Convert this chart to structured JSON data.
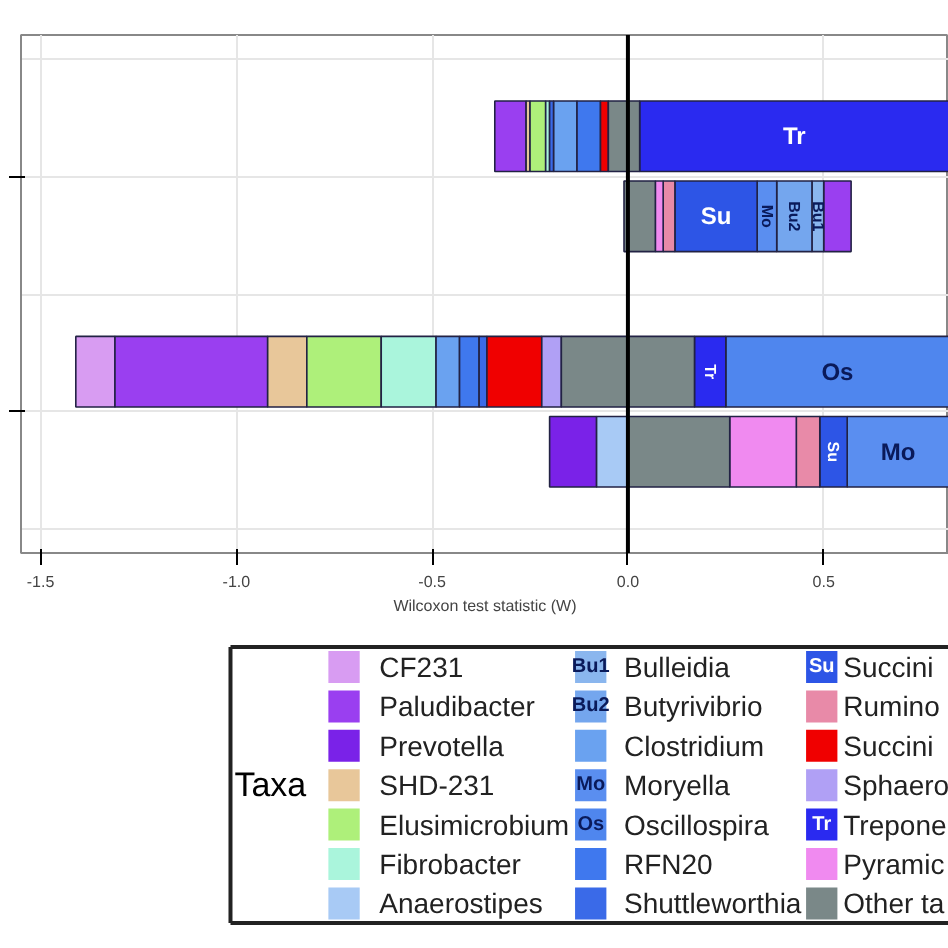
{
  "chart_data": {
    "type": "bar",
    "orientation": "horizontal",
    "xlabel": "Wilcoxon test statistic (W)",
    "legend_title": "Taxa",
    "legend": "bottom",
    "grid": true,
    "tick_labels": "x",
    "categories": [
      null,
      null,
      null,
      null
    ],
    "xlim": [
      -1.55,
      0.82
    ],
    "xticks": [
      {
        "value": -1.5,
        "label": "-1.5"
      },
      {
        "value": -1.0,
        "label": "-1.0"
      },
      {
        "value": -0.5,
        "label": "-0.5"
      },
      {
        "value": 0,
        "label": "0.0"
      },
      {
        "value": 0.5,
        "label": "0.5"
      }
    ],
    "ref_lines": [
      {
        "axis": "x",
        "value": 0,
        "color": "#000000"
      }
    ],
    "series": [
      {
        "name": "CF231",
        "color": "#d89cf2",
        "base": [
          null,
          null,
          -1.41,
          null
        ],
        "values": [
          null,
          null,
          0.1,
          null
        ]
      },
      {
        "name": "Paludibacter",
        "color": "#9a3ff0",
        "base": [
          -0.34,
          0.5,
          -1.31,
          null
        ],
        "values": [
          0.08,
          0.07,
          0.39,
          null
        ]
      },
      {
        "name": "Prevotella",
        "color": "#7a22e8",
        "base": [
          null,
          null,
          null,
          -0.2
        ],
        "values": [
          null,
          null,
          null,
          0.12
        ]
      },
      {
        "name": "SHD-231",
        "color": "#e8c79a",
        "base": [
          -0.26,
          null,
          -0.92,
          null
        ],
        "values": [
          0.01,
          null,
          0.1,
          null
        ]
      },
      {
        "name": "Elusimicrobium",
        "color": "#aef07a",
        "base": [
          -0.25,
          null,
          -0.82,
          null
        ],
        "values": [
          0.04,
          null,
          0.19,
          null
        ]
      },
      {
        "name": "Fibrobacter",
        "color": "#aaf5dc",
        "base": [
          -0.21,
          null,
          -0.63,
          null
        ],
        "values": [
          0.01,
          null,
          0.14,
          null
        ]
      },
      {
        "name": "Anaerostipes",
        "color": "#a8caf5",
        "base": [
          null,
          null,
          null,
          -0.08
        ],
        "values": [
          null,
          null,
          null,
          0.08
        ]
      },
      {
        "name": "Bulleidia",
        "color": "#8ab6ee",
        "base": [
          null,
          0.47,
          null,
          null
        ],
        "values": [
          null,
          0.03,
          null,
          null
        ],
        "value_labels": [
          null,
          "Bu1",
          null,
          null
        ]
      },
      {
        "name": "Butyrivibrio",
        "color": "#74a6ee",
        "base": [
          null,
          0.38,
          null,
          null
        ],
        "values": [
          null,
          0.09,
          null,
          null
        ],
        "value_labels": [
          null,
          "Bu2",
          null,
          null
        ]
      },
      {
        "name": "Clostridium",
        "color": "#6aa2f0",
        "base": [
          -0.19,
          null,
          -0.49,
          null
        ],
        "values": [
          0.06,
          null,
          0.06,
          null
        ]
      },
      {
        "name": "Moryella",
        "color": "#5a8ef0",
        "base": [
          null,
          0.33,
          null,
          0.56
        ],
        "values": [
          null,
          0.05,
          null,
          0.26
        ],
        "value_labels": [
          null,
          "Mo",
          null,
          "Mo"
        ]
      },
      {
        "name": "Oscillospira",
        "color": "#4f86ee",
        "base": [
          null,
          null,
          0.25,
          null
        ],
        "values": [
          null,
          null,
          0.57,
          null
        ],
        "value_labels": [
          null,
          null,
          "Os",
          null
        ]
      },
      {
        "name": "RFN20",
        "color": "#3f78ee",
        "base": [
          -0.13,
          null,
          -0.43,
          null
        ],
        "values": [
          0.06,
          null,
          0.05,
          null
        ]
      },
      {
        "name": "Shuttleworthia",
        "color": "#3a6ae8",
        "base": [
          -0.2,
          null,
          -0.38,
          null
        ],
        "values": [
          0.01,
          null,
          0.02,
          null
        ]
      },
      {
        "name": "Succini",
        "color": "#2d55e6",
        "base": [
          null,
          0.12,
          null,
          0.49
        ],
        "values": [
          null,
          0.21,
          null,
          0.07
        ],
        "value_labels": [
          null,
          "Su",
          null,
          "Su"
        ]
      },
      {
        "name": "Rumino",
        "color": "#e88aa8",
        "base": [
          null,
          0.09,
          null,
          0.43
        ],
        "values": [
          null,
          0.03,
          null,
          0.06
        ]
      },
      {
        "name": "Succini",
        "color": "#f00000",
        "base": [
          -0.07,
          null,
          -0.36,
          null
        ],
        "values": [
          0.02,
          null,
          0.14,
          null
        ]
      },
      {
        "name": "Sphaero",
        "color": "#b0a0f5",
        "base": [
          null,
          null,
          -0.22,
          null
        ],
        "values": [
          null,
          null,
          0.05,
          null
        ]
      },
      {
        "name": "Trepone",
        "color": "#2a2af0",
        "base": [
          0.03,
          null,
          0.17,
          null
        ],
        "values": [
          0.79,
          null,
          0.08,
          null
        ],
        "value_labels": [
          "Tr",
          null,
          "Tr",
          null
        ]
      },
      {
        "name": "Pyramic",
        "color": "#f08af0",
        "base": [
          null,
          0.07,
          null,
          0.26
        ],
        "values": [
          null,
          0.02,
          null,
          0.17
        ]
      },
      {
        "name": "Other ta",
        "color": "#7a8888",
        "base": [
          -0.05,
          -0.01,
          -0.17,
          0
        ],
        "values": [
          0.08,
          0.08,
          0.34,
          0.26
        ]
      }
    ]
  }
}
